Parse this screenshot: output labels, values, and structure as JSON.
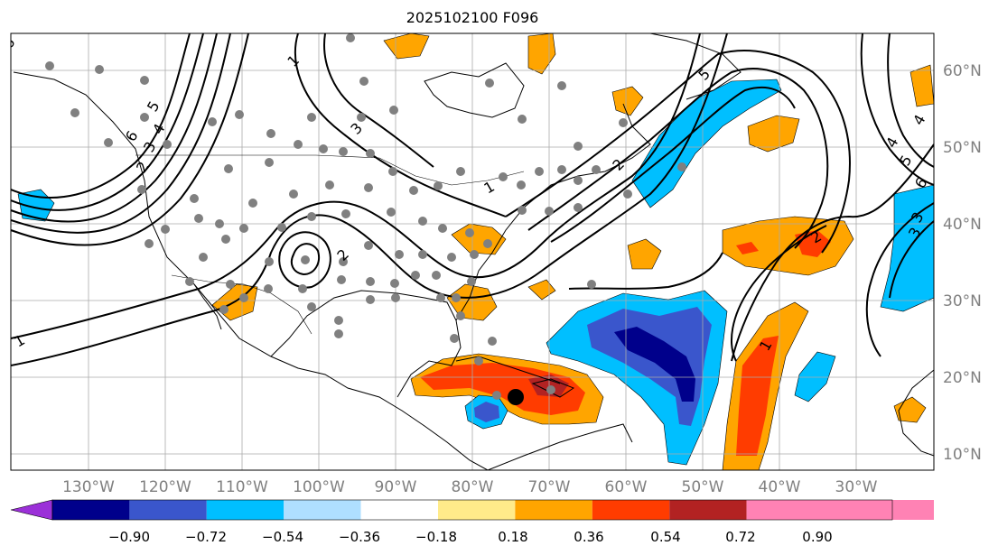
{
  "title": "2025102100 F096",
  "lon_labels": [
    "130°W",
    "120°W",
    "110°W",
    "100°W",
    "90°W",
    "80°W",
    "70°W",
    "60°W",
    "50°W",
    "40°W",
    "30°W"
  ],
  "lat_labels": [
    "60°N",
    "50°N",
    "40°N",
    "30°N",
    "20°N",
    "10°N"
  ],
  "colorbar": {
    "ticks": [
      "−0.90",
      "−0.72",
      "−0.54",
      "−0.36",
      "−0.18",
      "0.18",
      "0.36",
      "0.54",
      "0.72",
      "0.90"
    ],
    "colors": [
      "#9b30d8",
      "#00008b",
      "#3a56cc",
      "#00bfff",
      "#afdfff",
      "#ffffff",
      "#ffeb8a",
      "#ffa500",
      "#ff3c00",
      "#b22222",
      "#ff82b4"
    ]
  },
  "contour_labels": [
    {
      "text": "6"
    },
    {
      "text": "5"
    },
    {
      "text": "4"
    },
    {
      "text": "3"
    },
    {
      "text": "2"
    },
    {
      "text": "1"
    },
    {
      "text": "3"
    },
    {
      "text": "2"
    },
    {
      "text": "1"
    },
    {
      "text": "6"
    },
    {
      "text": "5"
    },
    {
      "text": "4"
    },
    {
      "text": "3"
    },
    {
      "text": "2"
    },
    {
      "text": "1"
    },
    {
      "text": "2"
    },
    {
      "text": "1"
    },
    {
      "text": "5"
    },
    {
      "text": "4"
    },
    {
      "text": "3"
    },
    {
      "text": "6"
    }
  ]
}
